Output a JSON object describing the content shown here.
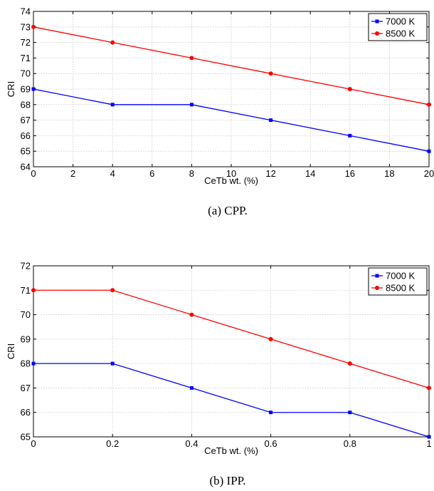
{
  "chart_data": [
    {
      "type": "line",
      "caption": "(a)  CPP.",
      "xlabel": "CeTb wt. (%)",
      "ylabel": "CRI",
      "xlim": [
        0,
        20
      ],
      "ylim": [
        64,
        74
      ],
      "xticks": [
        0,
        2,
        4,
        6,
        8,
        10,
        12,
        14,
        16,
        18,
        20
      ],
      "yticks": [
        64,
        65,
        66,
        67,
        68,
        69,
        70,
        71,
        72,
        73,
        74
      ],
      "grid": true,
      "legend_position": "top-right",
      "series": [
        {
          "name": "7000 K",
          "color": "#0000ff",
          "marker": "square",
          "x": [
            0,
            4,
            8,
            12,
            16,
            20
          ],
          "y": [
            69,
            68,
            68,
            67,
            66,
            65
          ]
        },
        {
          "name": "8500 K",
          "color": "#ff0000",
          "marker": "circle",
          "x": [
            0,
            4,
            8,
            12,
            16,
            20
          ],
          "y": [
            73,
            72,
            71,
            70,
            69,
            68
          ]
        }
      ]
    },
    {
      "type": "line",
      "caption": "(b)  IPP.",
      "xlabel": "CeTb wt. (%)",
      "ylabel": "CRI",
      "xlim": [
        0,
        1
      ],
      "ylim": [
        65,
        72
      ],
      "xticks": [
        0,
        0.2,
        0.4,
        0.6,
        0.8,
        1
      ],
      "yticks": [
        65,
        66,
        67,
        68,
        69,
        70,
        71,
        72
      ],
      "grid": true,
      "legend_position": "top-right",
      "series": [
        {
          "name": "7000 K",
          "color": "#0000ff",
          "marker": "square",
          "x": [
            0,
            0.2,
            0.4,
            0.6,
            0.8,
            1
          ],
          "y": [
            68,
            68,
            67,
            66,
            66,
            65
          ]
        },
        {
          "name": "8500 K",
          "color": "#ff0000",
          "marker": "circle",
          "x": [
            0,
            0.2,
            0.4,
            0.6,
            0.8,
            1
          ],
          "y": [
            71,
            71,
            70,
            69,
            68,
            67
          ]
        }
      ]
    }
  ]
}
